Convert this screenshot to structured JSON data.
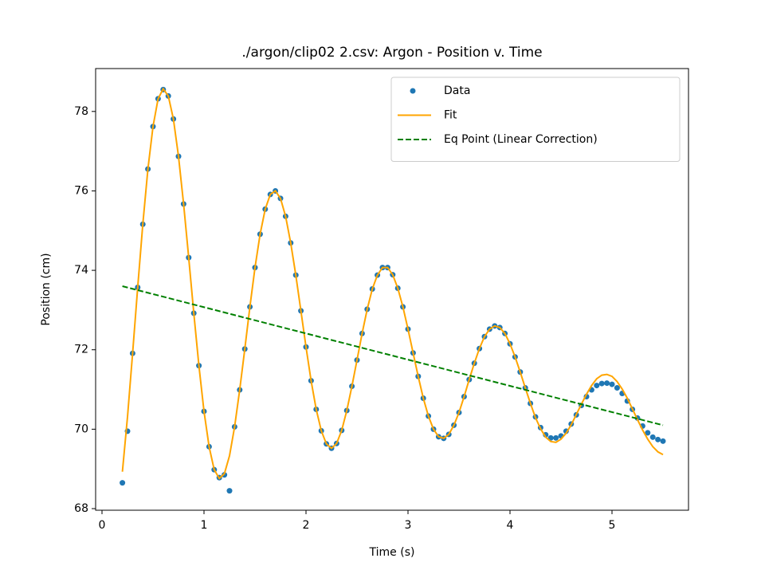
{
  "chart_data": {
    "type": "line",
    "title": "./argon/clip02 2.csv: Argon - Position v. Time",
    "x_label": "Time (s)",
    "y_label": "Position (cm)",
    "xlim": [
      -0.0625,
      5.75
    ],
    "ylim": [
      67.96,
      79.08
    ],
    "xticks": [
      0,
      1,
      2,
      3,
      4,
      5
    ],
    "yticks": [
      68,
      70,
      72,
      74,
      76,
      78
    ],
    "legend": "upper right",
    "x": [
      0.2,
      0.25,
      0.3,
      0.35,
      0.4,
      0.45,
      0.5,
      0.55,
      0.6,
      0.65,
      0.7,
      0.75,
      0.8,
      0.85,
      0.9,
      0.95,
      1.0,
      1.05,
      1.1,
      1.15,
      1.2,
      1.25,
      1.3,
      1.35,
      1.4,
      1.45,
      1.5,
      1.55,
      1.6,
      1.65,
      1.7,
      1.75,
      1.8,
      1.85,
      1.9,
      1.95,
      2.0,
      2.05,
      2.1,
      2.15,
      2.2,
      2.25,
      2.3,
      2.35,
      2.4,
      2.45,
      2.5,
      2.55,
      2.6,
      2.65,
      2.7,
      2.75,
      2.8,
      2.85,
      2.9,
      2.95,
      3.0,
      3.05,
      3.1,
      3.15,
      3.2,
      3.25,
      3.3,
      3.35,
      3.4,
      3.45,
      3.5,
      3.55,
      3.6,
      3.65,
      3.7,
      3.75,
      3.8,
      3.85,
      3.9,
      3.95,
      4.0,
      4.05,
      4.1,
      4.15,
      4.2,
      4.25,
      4.3,
      4.35,
      4.4,
      4.45,
      4.5,
      4.55,
      4.6,
      4.65,
      4.7,
      4.75,
      4.8,
      4.85,
      4.9,
      4.95,
      5.0,
      5.05,
      5.1,
      5.15,
      5.2,
      5.25,
      5.3,
      5.35,
      5.4,
      5.45,
      5.5
    ],
    "series": [
      {
        "name": "Data",
        "style": "markers",
        "color": "#1f77b4",
        "values": [
          68.65,
          69.95,
          71.91,
          73.57,
          75.16,
          76.55,
          77.62,
          78.32,
          78.55,
          78.39,
          77.81,
          76.87,
          75.67,
          74.32,
          72.92,
          71.6,
          70.45,
          69.56,
          68.98,
          68.78,
          68.85,
          68.45,
          70.06,
          70.99,
          72.02,
          73.08,
          74.07,
          74.91,
          75.54,
          75.91,
          76.0,
          75.81,
          75.36,
          74.69,
          73.88,
          72.98,
          72.07,
          71.22,
          70.5,
          69.96,
          69.63,
          69.52,
          69.64,
          69.97,
          70.47,
          71.08,
          71.74,
          72.41,
          73.02,
          73.53,
          73.88,
          74.07,
          74.07,
          73.89,
          73.55,
          73.08,
          72.52,
          71.92,
          71.33,
          70.78,
          70.33,
          70.0,
          69.81,
          69.77,
          69.87,
          70.1,
          70.42,
          70.82,
          71.25,
          71.66,
          72.03,
          72.33,
          72.52,
          72.6,
          72.56,
          72.41,
          72.15,
          71.82,
          71.44,
          71.04,
          70.65,
          70.31,
          70.04,
          69.86,
          69.78,
          69.78,
          69.83,
          69.95,
          70.13,
          70.36,
          70.6,
          70.82,
          70.99,
          71.1,
          71.15,
          71.16,
          71.13,
          71.04,
          70.9,
          70.71,
          70.5,
          70.28,
          70.08,
          69.91,
          69.8,
          69.74,
          69.7
        ]
      },
      {
        "name": "Fit",
        "style": "solid",
        "color": "#ffa500",
        "values": [
          68.93,
          70.31,
          71.91,
          73.57,
          75.16,
          76.55,
          77.62,
          78.32,
          78.57,
          78.39,
          77.81,
          76.87,
          75.67,
          74.32,
          72.92,
          71.6,
          70.45,
          69.56,
          68.98,
          68.76,
          68.88,
          69.33,
          70.06,
          70.99,
          72.02,
          73.08,
          74.07,
          74.91,
          75.54,
          75.91,
          76.0,
          75.81,
          75.36,
          74.69,
          73.88,
          72.98,
          72.07,
          71.22,
          70.5,
          69.96,
          69.63,
          69.52,
          69.64,
          69.97,
          70.47,
          71.08,
          71.74,
          72.41,
          73.02,
          73.53,
          73.88,
          74.07,
          74.07,
          73.89,
          73.55,
          73.08,
          72.52,
          71.92,
          71.33,
          70.78,
          70.33,
          70.0,
          69.81,
          69.77,
          69.87,
          70.1,
          70.42,
          70.82,
          71.25,
          71.66,
          72.03,
          72.33,
          72.52,
          72.6,
          72.56,
          72.41,
          72.15,
          71.82,
          71.44,
          71.04,
          70.65,
          70.29,
          70.01,
          69.8,
          69.69,
          69.67,
          69.75,
          69.9,
          70.11,
          70.37,
          70.63,
          70.88,
          71.1,
          71.27,
          71.36,
          71.38,
          71.33,
          71.2,
          71.01,
          70.78,
          70.51,
          70.24,
          69.98,
          69.75,
          69.56,
          69.43,
          69.36
        ]
      },
      {
        "name": "Eq Point (Linear Correction)",
        "style": "dashed",
        "color": "#008000",
        "x": [
          0.2,
          5.5
        ],
        "values": [
          73.6,
          70.1
        ]
      }
    ]
  }
}
